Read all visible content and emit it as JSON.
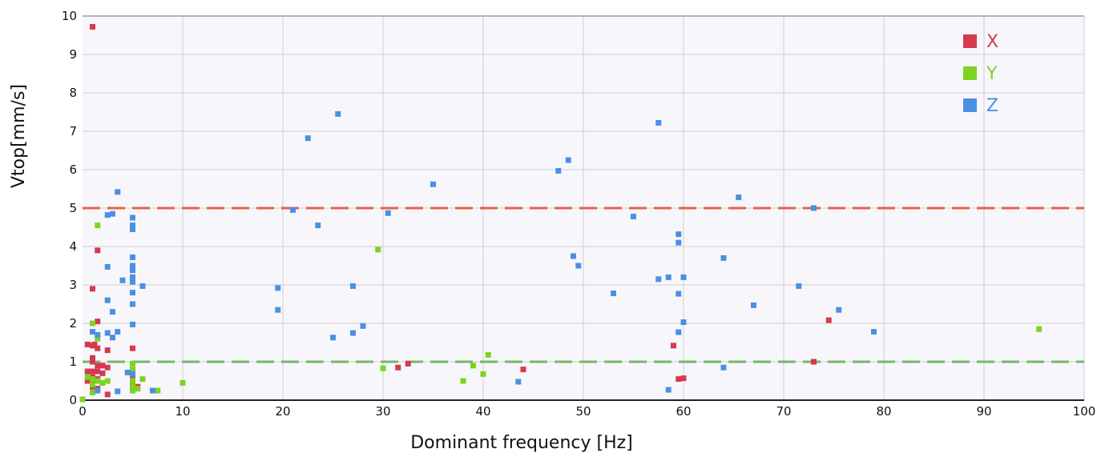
{
  "chart_data": {
    "type": "scatter",
    "title": "",
    "xlabel": "Dominant frequency [Hz]",
    "ylabel": "Vtop[mm/s]",
    "xlim": [
      0,
      100
    ],
    "ylim": [
      0,
      10
    ],
    "x_ticks": [
      "0",
      "10",
      "20",
      "30",
      "40",
      "50",
      "60",
      "70",
      "80",
      "90",
      "100"
    ],
    "y_ticks": [
      "0",
      "1",
      "2",
      "3",
      "4",
      "5",
      "6",
      "7",
      "8",
      "9",
      "10"
    ],
    "grid": true,
    "legend_position": "top-right",
    "reference_lines": [
      {
        "y": 5,
        "color": "#e8604a",
        "style": "dashed"
      },
      {
        "y": 1,
        "color": "#74b76a",
        "style": "dashed"
      }
    ],
    "series": [
      {
        "name": "X",
        "color": "#d63a4e",
        "points": [
          [
            1.0,
            9.72
          ],
          [
            0.5,
            1.45
          ],
          [
            1.0,
            1.42
          ],
          [
            1.2,
            1.45
          ],
          [
            1.5,
            1.35
          ],
          [
            1.0,
            2.9
          ],
          [
            1.5,
            3.9
          ],
          [
            1.5,
            2.05
          ],
          [
            2.5,
            1.3
          ],
          [
            1.0,
            1.1
          ],
          [
            1.0,
            1.0
          ],
          [
            1.5,
            0.9
          ],
          [
            2.0,
            0.9
          ],
          [
            2.5,
            0.85
          ],
          [
            0.5,
            0.75
          ],
          [
            1.0,
            0.75
          ],
          [
            1.5,
            0.75
          ],
          [
            2.0,
            0.7
          ],
          [
            1.0,
            0.6
          ],
          [
            1.5,
            0.55
          ],
          [
            0.5,
            0.5
          ],
          [
            1.0,
            0.45
          ],
          [
            2.0,
            0.45
          ],
          [
            1.0,
            0.35
          ],
          [
            1.5,
            0.3
          ],
          [
            2.5,
            0.15
          ],
          [
            5.0,
            1.35
          ],
          [
            5.0,
            0.75
          ],
          [
            5.0,
            0.65
          ],
          [
            5.0,
            0.4
          ],
          [
            5.5,
            0.35
          ],
          [
            31.5,
            0.85
          ],
          [
            32.5,
            0.95
          ],
          [
            44.0,
            0.8
          ],
          [
            59.0,
            1.42
          ],
          [
            59.5,
            0.55
          ],
          [
            60.0,
            0.57
          ],
          [
            73.0,
            1.0
          ],
          [
            74.5,
            2.08
          ]
        ]
      },
      {
        "name": "Y",
        "color": "#7ed321",
        "points": [
          [
            1.5,
            4.55
          ],
          [
            1.0,
            2.0
          ],
          [
            1.5,
            1.6
          ],
          [
            0.5,
            0.6
          ],
          [
            1.0,
            0.55
          ],
          [
            1.0,
            0.4
          ],
          [
            1.5,
            0.5
          ],
          [
            1.0,
            0.2
          ],
          [
            2.0,
            0.45
          ],
          [
            2.5,
            0.5
          ],
          [
            0.0,
            0.02
          ],
          [
            5.0,
            0.95
          ],
          [
            5.0,
            0.8
          ],
          [
            5.0,
            0.5
          ],
          [
            5.0,
            0.35
          ],
          [
            5.0,
            0.25
          ],
          [
            5.5,
            0.3
          ],
          [
            6.0,
            0.55
          ],
          [
            7.5,
            0.25
          ],
          [
            10.0,
            0.45
          ],
          [
            29.5,
            3.92
          ],
          [
            30.0,
            0.83
          ],
          [
            38.0,
            0.5
          ],
          [
            39.0,
            0.9
          ],
          [
            40.0,
            0.68
          ],
          [
            40.5,
            1.18
          ],
          [
            95.5,
            1.85
          ]
        ]
      },
      {
        "name": "Z",
        "color": "#4a90e2",
        "points": [
          [
            3.5,
            5.42
          ],
          [
            2.5,
            4.82
          ],
          [
            3.0,
            4.85
          ],
          [
            5.0,
            4.75
          ],
          [
            5.0,
            4.55
          ],
          [
            5.0,
            4.45
          ],
          [
            2.5,
            3.47
          ],
          [
            5.0,
            3.72
          ],
          [
            5.0,
            3.5
          ],
          [
            5.0,
            3.38
          ],
          [
            5.0,
            3.2
          ],
          [
            4.0,
            3.12
          ],
          [
            5.0,
            3.08
          ],
          [
            6.0,
            2.97
          ],
          [
            5.0,
            2.8
          ],
          [
            2.5,
            2.6
          ],
          [
            5.0,
            2.5
          ],
          [
            3.0,
            2.3
          ],
          [
            5.0,
            1.97
          ],
          [
            1.0,
            1.78
          ],
          [
            1.5,
            1.7
          ],
          [
            2.5,
            1.75
          ],
          [
            3.5,
            1.78
          ],
          [
            3.0,
            1.63
          ],
          [
            4.5,
            0.72
          ],
          [
            5.0,
            0.68
          ],
          [
            1.5,
            0.25
          ],
          [
            3.5,
            0.23
          ],
          [
            7.0,
            0.25
          ],
          [
            19.5,
            2.92
          ],
          [
            19.5,
            2.35
          ],
          [
            21.0,
            4.95
          ],
          [
            22.5,
            6.82
          ],
          [
            23.5,
            4.55
          ],
          [
            25.0,
            1.63
          ],
          [
            25.5,
            7.45
          ],
          [
            27.0,
            2.97
          ],
          [
            27.0,
            1.75
          ],
          [
            28.0,
            1.93
          ],
          [
            30.5,
            4.87
          ],
          [
            35.0,
            5.62
          ],
          [
            43.5,
            0.48
          ],
          [
            47.5,
            5.97
          ],
          [
            48.5,
            6.25
          ],
          [
            49.0,
            3.75
          ],
          [
            49.5,
            3.5
          ],
          [
            53.0,
            2.78
          ],
          [
            55.0,
            4.78
          ],
          [
            57.5,
            7.22
          ],
          [
            57.5,
            3.15
          ],
          [
            58.5,
            3.2
          ],
          [
            58.5,
            0.27
          ],
          [
            59.5,
            4.32
          ],
          [
            59.5,
            4.1
          ],
          [
            59.5,
            2.77
          ],
          [
            59.5,
            1.77
          ],
          [
            60.0,
            3.2
          ],
          [
            60.0,
            2.03
          ],
          [
            64.0,
            3.7
          ],
          [
            64.0,
            0.85
          ],
          [
            65.5,
            5.28
          ],
          [
            67.0,
            2.47
          ],
          [
            71.5,
            2.97
          ],
          [
            73.0,
            5.0
          ],
          [
            75.5,
            2.35
          ],
          [
            79.0,
            1.78
          ]
        ]
      }
    ]
  }
}
